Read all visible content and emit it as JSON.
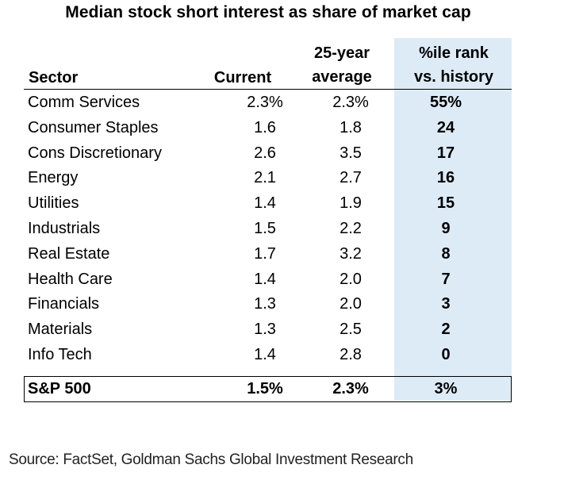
{
  "chart_data": {
    "type": "table",
    "title": "Median stock short interest as share of market cap",
    "columns": {
      "sector": "Sector",
      "current": "Current",
      "avg_line1": "25-year",
      "avg_line2": "average",
      "rank_line1": "%ile rank",
      "rank_line2": "vs. history"
    },
    "rows": [
      {
        "sector": "Comm Services",
        "current": "2.3%",
        "average": "2.3%",
        "rank": "55%"
      },
      {
        "sector": "Consumer Staples",
        "current": "1.6",
        "average": "1.8",
        "rank": "24"
      },
      {
        "sector": "Cons Discretionary",
        "current": "2.6",
        "average": "3.5",
        "rank": "17"
      },
      {
        "sector": "Energy",
        "current": "2.1",
        "average": "2.7",
        "rank": "16"
      },
      {
        "sector": "Utilities",
        "current": "1.4",
        "average": "1.9",
        "rank": "15"
      },
      {
        "sector": "Industrials",
        "current": "1.5",
        "average": "2.2",
        "rank": "9"
      },
      {
        "sector": "Real Estate",
        "current": "1.7",
        "average": "3.2",
        "rank": "8"
      },
      {
        "sector": "Health Care",
        "current": "1.4",
        "average": "2.0",
        "rank": "7"
      },
      {
        "sector": "Financials",
        "current": "1.3",
        "average": "2.0",
        "rank": "3"
      },
      {
        "sector": "Materials",
        "current": "1.3",
        "average": "2.5",
        "rank": "2"
      },
      {
        "sector": "Info Tech",
        "current": "1.4",
        "average": "2.8",
        "rank": "0"
      }
    ],
    "total": {
      "sector": "S&P 500",
      "current": "1.5%",
      "average": "2.3%",
      "rank": "3%"
    }
  },
  "colors": {
    "rank_highlight": "#ddebf7"
  },
  "source": "Source: FactSet, Goldman Sachs Global Investment Research"
}
